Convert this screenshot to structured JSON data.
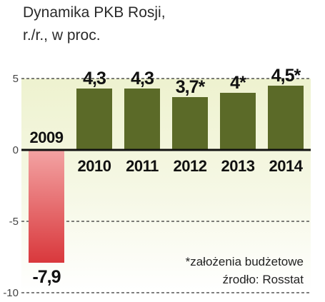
{
  "title_line1": "Dynamika PKB Rosji,",
  "title_line2": "r./r., w proc.",
  "note": "*założenia budżetowe",
  "source": "źrodło: Rosstat",
  "colors": {
    "positive_bar": "#5b6a28",
    "negative_bar": "#e35a5a",
    "background_top": "#eef2cf",
    "axis": "#111111",
    "grid": "#333333"
  },
  "chart_data": {
    "type": "bar",
    "title": "Dynamika PKB Rosji, r./r., w proc.",
    "categories": [
      "2009",
      "2010",
      "2011",
      "2012",
      "2013",
      "2014"
    ],
    "values": [
      -7.9,
      4.3,
      4.3,
      3.7,
      4.0,
      4.5
    ],
    "value_labels": [
      "-7,9",
      "4,3",
      "4,3",
      "3,7*",
      "4*",
      "4,5*"
    ],
    "ylim": [
      -10,
      5
    ],
    "yticks": [
      5,
      0,
      -5,
      -10
    ],
    "ytick_labels": [
      "5",
      "0",
      "-5",
      "-10"
    ],
    "grid": "dashed horizontal at ticks",
    "legend": "none"
  }
}
